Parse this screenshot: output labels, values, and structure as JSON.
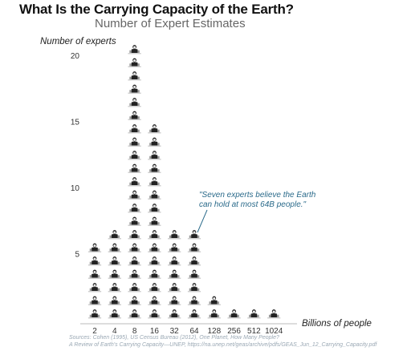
{
  "chart_data": {
    "type": "bar",
    "title": "What Is the Carrying Capacity of the Earth?",
    "subtitle": "Number of Expert Estimates",
    "xlabel": "Billions of people",
    "ylabel": "Number of experts",
    "categories": [
      "2",
      "4",
      "8",
      "16",
      "32",
      "64",
      "128",
      "256",
      "512",
      "1024"
    ],
    "values": [
      6,
      7,
      21,
      15,
      7,
      7,
      2,
      1,
      1,
      1
    ],
    "yticks": [
      5,
      10,
      15,
      20
    ],
    "ylim": [
      0,
      21
    ],
    "mark": "expert-person-icon",
    "annotation": {
      "line1": "\"Seven experts believe the Earth",
      "line2": "can hold at most 64B people.\"",
      "category": "64"
    },
    "source": {
      "line1": "Sources: Cohen (1995), US Census Bureau (2012), One Planet, How Many People?",
      "line2": "A Review of Earth's Carrying Capacity—UNEP, https://na.unep.net/geas/archive/pdfs/GEAS_Jun_12_Carrying_Capacity.pdf"
    },
    "colors": {
      "annotation": "#2a6a8a",
      "source": "#9aa8b4",
      "axis": "#bbbbbb"
    }
  }
}
